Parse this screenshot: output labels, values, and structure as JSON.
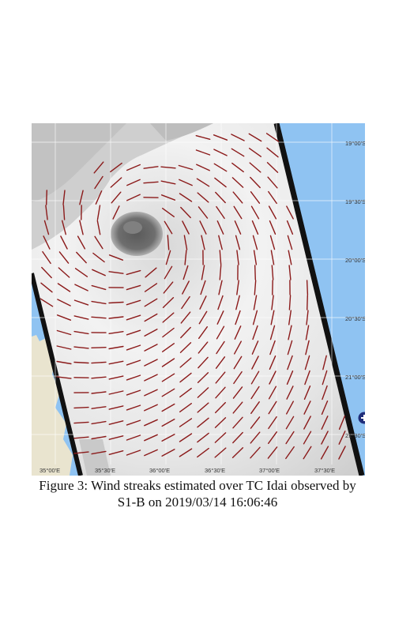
{
  "figure": {
    "caption_line1": "Figure 3: Wind streaks estimated over TC Idai observed by",
    "caption_line2": "S1-B on 2019/03/14 16:06:46"
  },
  "map": {
    "latitude_labels": [
      "19°00'S",
      "19°30'S",
      "20°00'S",
      "20°30'S",
      "21°00'S",
      "21°30'S"
    ],
    "longitude_labels": [
      "35°00'E",
      "35°30'E",
      "36°00'E",
      "36°30'E",
      "37°00'E",
      "37°30'E"
    ],
    "colors": {
      "ocean": "#8fc3f2",
      "land": "#e9e4cf",
      "sar_swath_edge": "#111111",
      "wind_streak": "#8b1a1a",
      "grid": "#ffffff"
    },
    "icons": [
      "plus-circle-icon"
    ]
  }
}
